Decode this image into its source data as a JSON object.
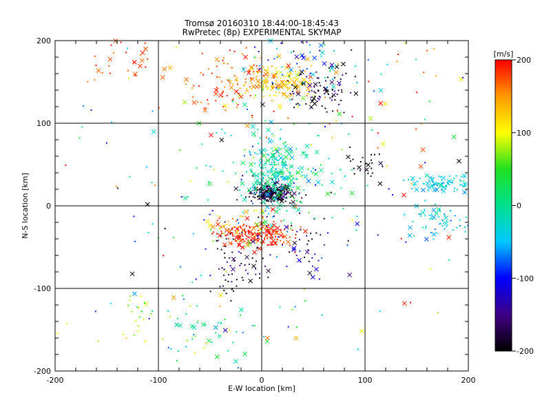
{
  "chart_data": {
    "type": "scatter",
    "title_line1": "Tromsø 20160310 18:44:00-18:45:43",
    "title_line2": "RwPretec (8p) EXPERIMENTAL SKYMAP",
    "xlabel": "E-W location [km]",
    "ylabel": "N-S location [km]",
    "xlim": [
      -200,
      200
    ],
    "ylim": [
      -200,
      200
    ],
    "xticks": [
      -200,
      -100,
      0,
      100,
      200
    ],
    "yticks": [
      -200,
      -100,
      0,
      100,
      200
    ],
    "grid": true,
    "colorbar": {
      "label": "[m/s]",
      "range": [
        -200,
        200
      ],
      "ticks": [
        200,
        100,
        0,
        -100,
        -200
      ]
    },
    "clusters": [
      {
        "x": 10,
        "y": 15,
        "sx": 10,
        "sy": 5,
        "v": -190,
        "sv": 15,
        "n": 260
      },
      {
        "x": 10,
        "y": 40,
        "sx": 14,
        "sy": 22,
        "v": -20,
        "sv": 30,
        "n": 190
      },
      {
        "x": 20,
        "y": 35,
        "sx": 35,
        "sy": 30,
        "v": 10,
        "sv": 40,
        "n": 150
      },
      {
        "x": 15,
        "y": 150,
        "sx": 18,
        "sy": 12,
        "v": 120,
        "sv": 20,
        "n": 150
      },
      {
        "x": -30,
        "y": 150,
        "sx": 30,
        "sy": 20,
        "v": 170,
        "sv": 20,
        "n": 110
      },
      {
        "x": 55,
        "y": 140,
        "sx": 18,
        "sy": 15,
        "v": -190,
        "sv": 20,
        "n": 90
      },
      {
        "x": 50,
        "y": 175,
        "sx": 30,
        "sy": 20,
        "v": -60,
        "sv": 50,
        "n": 70
      },
      {
        "x": -5,
        "y": -35,
        "sx": 18,
        "sy": 8,
        "v": 190,
        "sv": 15,
        "n": 190
      },
      {
        "x": -20,
        "y": -25,
        "sx": 15,
        "sy": 10,
        "v": 120,
        "sv": 30,
        "n": 40
      },
      {
        "x": 25,
        "y": -50,
        "sx": 35,
        "sy": 20,
        "v": -160,
        "sv": 40,
        "n": 70
      },
      {
        "x": -20,
        "y": -80,
        "sx": 12,
        "sy": 20,
        "v": -190,
        "sv": 20,
        "n": 50
      },
      {
        "x": 175,
        "y": 27,
        "sx": 20,
        "sy": 5,
        "v": -40,
        "sv": 15,
        "n": 90
      },
      {
        "x": 170,
        "y": -20,
        "sx": 18,
        "sy": 15,
        "v": -40,
        "sv": 20,
        "n": 70
      },
      {
        "x": 100,
        "y": 50,
        "sx": 10,
        "sy": 10,
        "v": -200,
        "sv": 10,
        "n": 25
      },
      {
        "x": -120,
        "y": -130,
        "sx": 8,
        "sy": 15,
        "v": 80,
        "sv": 20,
        "n": 20
      },
      {
        "x": -50,
        "y": -150,
        "sx": 25,
        "sy": 25,
        "v": 0,
        "sv": 50,
        "n": 60
      },
      {
        "x": -140,
        "y": 180,
        "sx": 30,
        "sy": 20,
        "v": 180,
        "sv": 20,
        "n": 30
      },
      {
        "x": 140,
        "y": 130,
        "sx": 50,
        "sy": 60,
        "v": 150,
        "sv": 60,
        "n": 30
      },
      {
        "x": 0,
        "y": 0,
        "sx": 110,
        "sy": 110,
        "v": 0,
        "sv": 140,
        "n": 170
      }
    ]
  }
}
